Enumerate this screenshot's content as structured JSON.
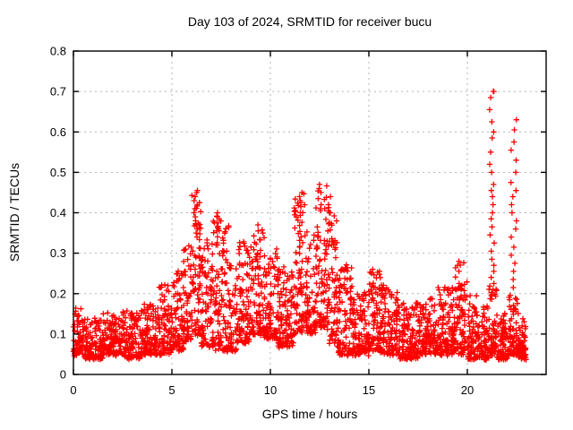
{
  "title": "Day 103 of 2024, SRMTID for receiver bucu",
  "xlabel": "GPS time / hours",
  "ylabel": "SRMTID / TECUs",
  "chart_data": {
    "type": "scatter",
    "marker": "plus",
    "marker_color": "#ff0000",
    "grid_color": "#b3b3b3",
    "border_color": "#000000",
    "grid": true,
    "legend": "none",
    "xlim": [
      0,
      24
    ],
    "ylim": [
      0,
      0.8
    ],
    "x_ticks": [
      0,
      5,
      10,
      15,
      20
    ],
    "x_tick_labels": [
      "0",
      "5",
      "10",
      "15",
      "20"
    ],
    "y_ticks": [
      0,
      0.1,
      0.2,
      0.3,
      0.4,
      0.5,
      0.6,
      0.7,
      0.8
    ],
    "y_tick_labels": [
      "0",
      "0.1",
      "0.2",
      "0.3",
      "0.4",
      "0.5",
      "0.6",
      "0.7",
      "0.8"
    ],
    "seed": 20240103,
    "t_quantum_hours": 0.02,
    "skew_exponent": 1.9,
    "bands": [
      {
        "t0": 0.0,
        "t1": 0.5,
        "n": 70,
        "lo": 0.05,
        "hi": 0.17
      },
      {
        "t0": 0.5,
        "t1": 1.5,
        "n": 130,
        "lo": 0.04,
        "hi": 0.14
      },
      {
        "t0": 1.5,
        "t1": 2.5,
        "n": 130,
        "lo": 0.05,
        "hi": 0.15
      },
      {
        "t0": 2.5,
        "t1": 3.5,
        "n": 130,
        "lo": 0.04,
        "hi": 0.16
      },
      {
        "t0": 3.5,
        "t1": 4.3,
        "n": 110,
        "lo": 0.05,
        "hi": 0.18
      },
      {
        "t0": 4.3,
        "t1": 5.0,
        "n": 95,
        "lo": 0.05,
        "hi": 0.22
      },
      {
        "t0": 5.0,
        "t1": 5.6,
        "n": 85,
        "lo": 0.06,
        "hi": 0.26
      },
      {
        "t0": 5.6,
        "t1": 6.0,
        "n": 55,
        "lo": 0.08,
        "hi": 0.32
      },
      {
        "t0": 6.0,
        "t1": 6.5,
        "n": 70,
        "lo": 0.1,
        "hi": 0.44
      },
      {
        "t0": 6.5,
        "t1": 7.1,
        "n": 80,
        "lo": 0.07,
        "hi": 0.33
      },
      {
        "t0": 7.1,
        "t1": 7.6,
        "n": 70,
        "lo": 0.06,
        "hi": 0.39
      },
      {
        "t0": 7.6,
        "t1": 8.3,
        "n": 95,
        "lo": 0.06,
        "hi": 0.37
      },
      {
        "t0": 8.3,
        "t1": 9.0,
        "n": 95,
        "lo": 0.08,
        "hi": 0.33
      },
      {
        "t0": 9.0,
        "t1": 9.7,
        "n": 95,
        "lo": 0.1,
        "hi": 0.36
      },
      {
        "t0": 9.7,
        "t1": 10.4,
        "n": 95,
        "lo": 0.09,
        "hi": 0.31
      },
      {
        "t0": 10.4,
        "t1": 11.2,
        "n": 110,
        "lo": 0.07,
        "hi": 0.27
      },
      {
        "t0": 11.2,
        "t1": 11.8,
        "n": 85,
        "lo": 0.1,
        "hi": 0.45
      },
      {
        "t0": 11.8,
        "t1": 12.3,
        "n": 70,
        "lo": 0.1,
        "hi": 0.36
      },
      {
        "t0": 12.3,
        "t1": 12.9,
        "n": 85,
        "lo": 0.12,
        "hi": 0.47
      },
      {
        "t0": 12.9,
        "t1": 13.4,
        "n": 70,
        "lo": 0.08,
        "hi": 0.42
      },
      {
        "t0": 13.4,
        "t1": 14.2,
        "n": 110,
        "lo": 0.05,
        "hi": 0.27
      },
      {
        "t0": 14.2,
        "t1": 15.0,
        "n": 110,
        "lo": 0.05,
        "hi": 0.2
      },
      {
        "t0": 15.0,
        "t1": 15.6,
        "n": 80,
        "lo": 0.06,
        "hi": 0.26
      },
      {
        "t0": 15.6,
        "t1": 16.5,
        "n": 120,
        "lo": 0.05,
        "hi": 0.22
      },
      {
        "t0": 16.5,
        "t1": 17.5,
        "n": 130,
        "lo": 0.04,
        "hi": 0.18
      },
      {
        "t0": 17.5,
        "t1": 18.5,
        "n": 130,
        "lo": 0.05,
        "hi": 0.19
      },
      {
        "t0": 18.5,
        "t1": 19.3,
        "n": 105,
        "lo": 0.05,
        "hi": 0.22
      },
      {
        "t0": 19.3,
        "t1": 20.0,
        "n": 95,
        "lo": 0.05,
        "hi": 0.28
      },
      {
        "t0": 20.0,
        "t1": 20.6,
        "n": 80,
        "lo": 0.04,
        "hi": 0.2
      },
      {
        "t0": 20.6,
        "t1": 21.1,
        "n": 70,
        "lo": 0.04,
        "hi": 0.17
      },
      {
        "t0": 21.1,
        "t1": 21.5,
        "n": 60,
        "lo": 0.05,
        "hi": 0.22
      },
      {
        "t0": 21.5,
        "t1": 22.1,
        "n": 80,
        "lo": 0.04,
        "hi": 0.15
      },
      {
        "t0": 22.1,
        "t1": 22.6,
        "n": 65,
        "lo": 0.05,
        "hi": 0.2
      },
      {
        "t0": 22.6,
        "t1": 23.0,
        "n": 60,
        "lo": 0.04,
        "hi": 0.14
      }
    ],
    "spikes": [
      {
        "t": 6.2,
        "w": 0.2,
        "ys": [
          0.455,
          0.45,
          0.44,
          0.43,
          0.42,
          0.41,
          0.4,
          0.39,
          0.38,
          0.37,
          0.36,
          0.35,
          0.34
        ]
      },
      {
        "t": 7.35,
        "w": 0.15,
        "ys": [
          0.4,
          0.39,
          0.375,
          0.36
        ]
      },
      {
        "t": 9.35,
        "w": 0.1,
        "ys": [
          0.37,
          0.355
        ]
      },
      {
        "t": 11.55,
        "w": 0.15,
        "ys": [
          0.45,
          0.44,
          0.43,
          0.415,
          0.4
        ]
      },
      {
        "t": 12.5,
        "w": 0.2,
        "ys": [
          0.47,
          0.46,
          0.45,
          0.435,
          0.42,
          0.41
        ]
      },
      {
        "t": 13.0,
        "w": 0.15,
        "ys": [
          0.44,
          0.42,
          0.4
        ]
      },
      {
        "t": 15.15,
        "w": 0.1,
        "ys": [
          0.26,
          0.25
        ]
      },
      {
        "t": 19.55,
        "w": 0.1,
        "ys": [
          0.28,
          0.27,
          0.255
        ]
      },
      {
        "t": 21.25,
        "w": 0.25,
        "ys": [
          0.7,
          0.7,
          0.685,
          0.655,
          0.625,
          0.6,
          0.585,
          0.55,
          0.52,
          0.5,
          0.47,
          0.455,
          0.44,
          0.42,
          0.4,
          0.385,
          0.365,
          0.345,
          0.325,
          0.305,
          0.285,
          0.27,
          0.255,
          0.24,
          0.225,
          0.21,
          0.195
        ]
      },
      {
        "t": 22.35,
        "w": 0.3,
        "ys": [
          0.63,
          0.605,
          0.575,
          0.555,
          0.53,
          0.5,
          0.475,
          0.455,
          0.44,
          0.42,
          0.4,
          0.38,
          0.36,
          0.34,
          0.315,
          0.295,
          0.275,
          0.255,
          0.235,
          0.215
        ]
      }
    ]
  }
}
